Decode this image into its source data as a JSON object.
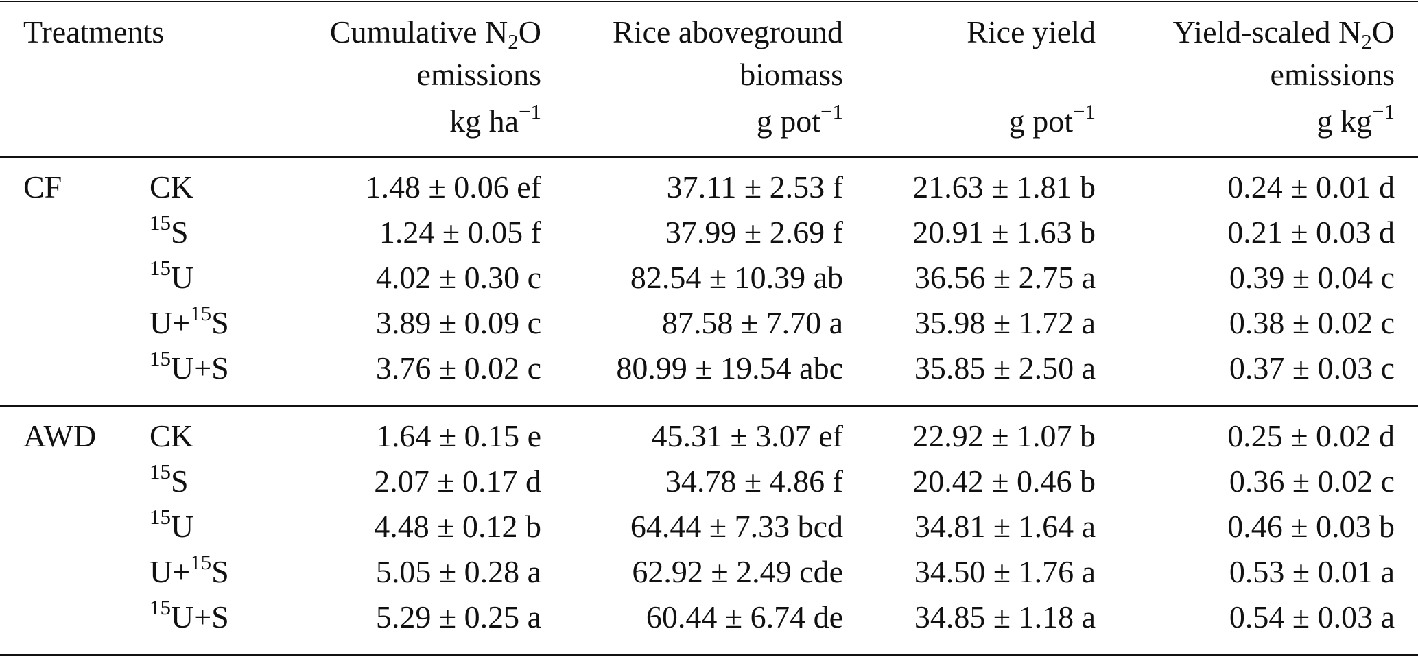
{
  "headers": {
    "treatments": "Treatments",
    "cum_prefix": "Cumulative N",
    "cum_sub": "2",
    "cum_suffix": "O",
    "cum_line2": "emissions",
    "cum_unit_base": "kg ha",
    "cum_unit_sup": "−1",
    "bio_line1": "Rice aboveground",
    "bio_line2": "biomass",
    "bio_unit_base": "g pot",
    "bio_unit_sup": "−1",
    "yield_line1": "Rice yield",
    "yield_unit_base": "g pot",
    "yield_unit_sup": "−1",
    "ys_prefix": "Yield-scaled N",
    "ys_sub": "2",
    "ys_suffix": "O",
    "ys_line2": "emissions",
    "ys_unit_base": "g kg",
    "ys_unit_sup": "−1"
  },
  "groups": [
    {
      "label": "CF",
      "rows": [
        {
          "sup1": "",
          "base1": "CK",
          "sup2": "",
          "base2": "",
          "cum": "1.48 ± 0.06 ef",
          "bio": "37.11 ± 2.53 f",
          "yield": "21.63 ± 1.81 b",
          "ys": "0.24 ± 0.01 d"
        },
        {
          "sup1": "15",
          "base1": "S",
          "sup2": "",
          "base2": "",
          "cum": "1.24 ± 0.05 f",
          "bio": "37.99 ± 2.69 f",
          "yield": "20.91 ± 1.63 b",
          "ys": "0.21 ± 0.03 d"
        },
        {
          "sup1": "15",
          "base1": "U",
          "sup2": "",
          "base2": "",
          "cum": "4.02 ± 0.30 c",
          "bio": "82.54 ± 10.39 ab",
          "yield": "36.56 ± 2.75 a",
          "ys": "0.39 ± 0.04 c"
        },
        {
          "sup1": "",
          "base1": "U+",
          "sup2": "15",
          "base2": "S",
          "cum": "3.89 ± 0.09 c",
          "bio": "87.58 ± 7.70 a",
          "yield": "35.98 ± 1.72 a",
          "ys": "0.38 ± 0.02 c"
        },
        {
          "sup1": "15",
          "base1": "U+S",
          "sup2": "",
          "base2": "",
          "cum": "3.76 ± 0.02 c",
          "bio": "80.99 ± 19.54 abc",
          "yield": "35.85 ± 2.50 a",
          "ys": "0.37 ± 0.03 c"
        }
      ]
    },
    {
      "label": "AWD",
      "rows": [
        {
          "sup1": "",
          "base1": "CK",
          "sup2": "",
          "base2": "",
          "cum": "1.64 ± 0.15 e",
          "bio": "45.31 ± 3.07 ef",
          "yield": "22.92 ± 1.07 b",
          "ys": "0.25 ± 0.02 d"
        },
        {
          "sup1": "15",
          "base1": "S",
          "sup2": "",
          "base2": "",
          "cum": "2.07 ± 0.17 d",
          "bio": "34.78 ± 4.86 f",
          "yield": "20.42 ± 0.46 b",
          "ys": "0.36 ± 0.02 c"
        },
        {
          "sup1": "15",
          "base1": "U",
          "sup2": "",
          "base2": "",
          "cum": "4.48 ± 0.12 b",
          "bio": "64.44 ± 7.33 bcd",
          "yield": "34.81 ± 1.64 a",
          "ys": "0.46 ± 0.03 b"
        },
        {
          "sup1": "",
          "base1": "U+",
          "sup2": "15",
          "base2": "S",
          "cum": "5.05 ± 0.28 a",
          "bio": "62.92 ± 2.49 cde",
          "yield": "34.50 ± 1.76 a",
          "ys": "0.53 ± 0.01 a"
        },
        {
          "sup1": "15",
          "base1": "U+S",
          "sup2": "",
          "base2": "",
          "cum": "5.29 ± 0.25 a",
          "bio": "60.44 ± 6.74 de",
          "yield": "34.85 ± 1.18 a",
          "ys": "0.54 ± 0.03 a"
        }
      ]
    }
  ]
}
